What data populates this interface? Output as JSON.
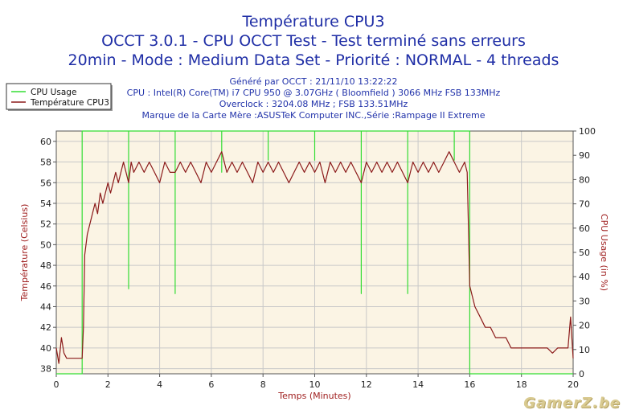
{
  "titles": [
    "Température CPU3",
    "OCCT 3.0.1 - CPU OCCT Test - Test terminé sans erreurs",
    "20min - Mode : Medium Data Set - Priorité : NORMAL - 4 threads"
  ],
  "info": [
    "Généré par OCCT : 21/11/10 13:22:22",
    "CPU : Intel(R) Core(TM) i7 CPU 950 @ 3.07GHz ( Bloomfield ) 3066 MHz FSB 133MHz",
    "Overclock : 3204.08 MHz ; FSB 133.51MHz",
    "Marque de la Carte Mère :ASUSTeK Computer INC.,Série :Rampage II Extreme"
  ],
  "watermark": "GamerZ.be",
  "colors": {
    "title": "#1f2ea6",
    "plot_bg": "#fbf4e4",
    "grid": "#c8c8c8",
    "temp_line": "#8b1a1a",
    "usage_line": "#33dd33",
    "axis_label": "#a02020"
  },
  "chart_data": {
    "type": "line",
    "title": "Température CPU3",
    "xlabel": "Temps (Minutes)",
    "ylabel": "Température (Celsius)",
    "y2label": "CPU Usage (in %)",
    "xlim": [
      0,
      20
    ],
    "ylim": [
      37.5,
      61
    ],
    "y2lim": [
      0,
      100
    ],
    "xticks": [
      0,
      2,
      4,
      6,
      8,
      10,
      12,
      14,
      16,
      18,
      20
    ],
    "yticks": [
      38,
      40,
      42,
      44,
      46,
      48,
      50,
      52,
      54,
      56,
      58,
      60
    ],
    "y2ticks": [
      0,
      10,
      20,
      30,
      40,
      50,
      60,
      70,
      80,
      90,
      100
    ],
    "grid": true,
    "legend": "top-left",
    "series": [
      {
        "name": "CPU Usage",
        "axis": "y2",
        "x": [
          0,
          1.0,
          1.0,
          2.8,
          2.8,
          2.8,
          2.8,
          4.6,
          4.6,
          4.6,
          4.6,
          6.4,
          6.4,
          6.4,
          6.4,
          8.2,
          8.2,
          8.2,
          8.2,
          10.0,
          10.0,
          10.0,
          10.0,
          11.8,
          11.8,
          11.8,
          11.8,
          13.6,
          13.6,
          13.6,
          13.6,
          15.4,
          15.4,
          15.4,
          15.4,
          16.0,
          16.0,
          20
        ],
        "values": [
          0,
          0,
          100,
          100,
          35,
          35,
          100,
          100,
          33,
          33,
          100,
          100,
          83,
          83,
          100,
          100,
          88,
          88,
          100,
          100,
          88,
          88,
          100,
          100,
          33,
          33,
          100,
          100,
          33,
          33,
          100,
          100,
          88,
          88,
          100,
          100,
          0,
          0
        ]
      },
      {
        "name": "Température CPU3",
        "axis": "y",
        "x": [
          0,
          0.1,
          0.2,
          0.3,
          0.4,
          0.5,
          0.6,
          0.7,
          0.8,
          0.9,
          1.0,
          1.05,
          1.1,
          1.2,
          1.3,
          1.4,
          1.5,
          1.6,
          1.7,
          1.8,
          1.9,
          2.0,
          2.1,
          2.2,
          2.3,
          2.4,
          2.5,
          2.6,
          2.7,
          2.8,
          2.9,
          3.0,
          3.2,
          3.4,
          3.6,
          3.8,
          4.0,
          4.2,
          4.4,
          4.6,
          4.8,
          5.0,
          5.2,
          5.4,
          5.6,
          5.8,
          6.0,
          6.2,
          6.4,
          6.6,
          6.8,
          7.0,
          7.2,
          7.4,
          7.6,
          7.8,
          8.0,
          8.2,
          8.4,
          8.6,
          8.8,
          9.0,
          9.2,
          9.4,
          9.6,
          9.8,
          10.0,
          10.2,
          10.4,
          10.6,
          10.8,
          11.0,
          11.2,
          11.4,
          11.6,
          11.8,
          12.0,
          12.2,
          12.4,
          12.6,
          12.8,
          13.0,
          13.2,
          13.4,
          13.6,
          13.8,
          14.0,
          14.2,
          14.4,
          14.6,
          14.8,
          15.0,
          15.2,
          15.4,
          15.6,
          15.8,
          15.9,
          16.0,
          16.1,
          16.2,
          16.4,
          16.6,
          16.8,
          17.0,
          17.2,
          17.4,
          17.6,
          17.8,
          18.0,
          18.2,
          18.4,
          18.6,
          18.8,
          19.0,
          19.2,
          19.4,
          19.6,
          19.8,
          19.9,
          20.0
        ],
        "values": [
          40,
          38.5,
          41,
          39.5,
          39,
          39,
          39,
          39,
          39,
          39,
          39,
          42,
          49,
          51,
          52,
          53,
          54,
          53,
          55,
          54,
          55,
          56,
          55,
          56,
          57,
          56,
          57,
          58,
          57,
          56,
          58,
          57,
          58,
          57,
          58,
          57,
          56,
          58,
          57,
          57,
          58,
          57,
          58,
          57,
          56,
          58,
          57,
          58,
          59,
          57,
          58,
          57,
          58,
          57,
          56,
          58,
          57,
          58,
          57,
          58,
          57,
          56,
          57,
          58,
          57,
          58,
          57,
          58,
          56,
          58,
          57,
          58,
          57,
          58,
          57,
          56,
          58,
          57,
          58,
          57,
          58,
          57,
          58,
          57,
          56,
          58,
          57,
          58,
          57,
          58,
          57,
          58,
          59,
          58,
          57,
          58,
          57,
          46,
          45,
          44,
          43,
          42,
          42,
          41,
          41,
          41,
          40,
          40,
          40,
          40,
          40,
          40,
          40,
          40,
          39.5,
          40,
          40,
          40,
          43,
          39
        ]
      }
    ]
  }
}
